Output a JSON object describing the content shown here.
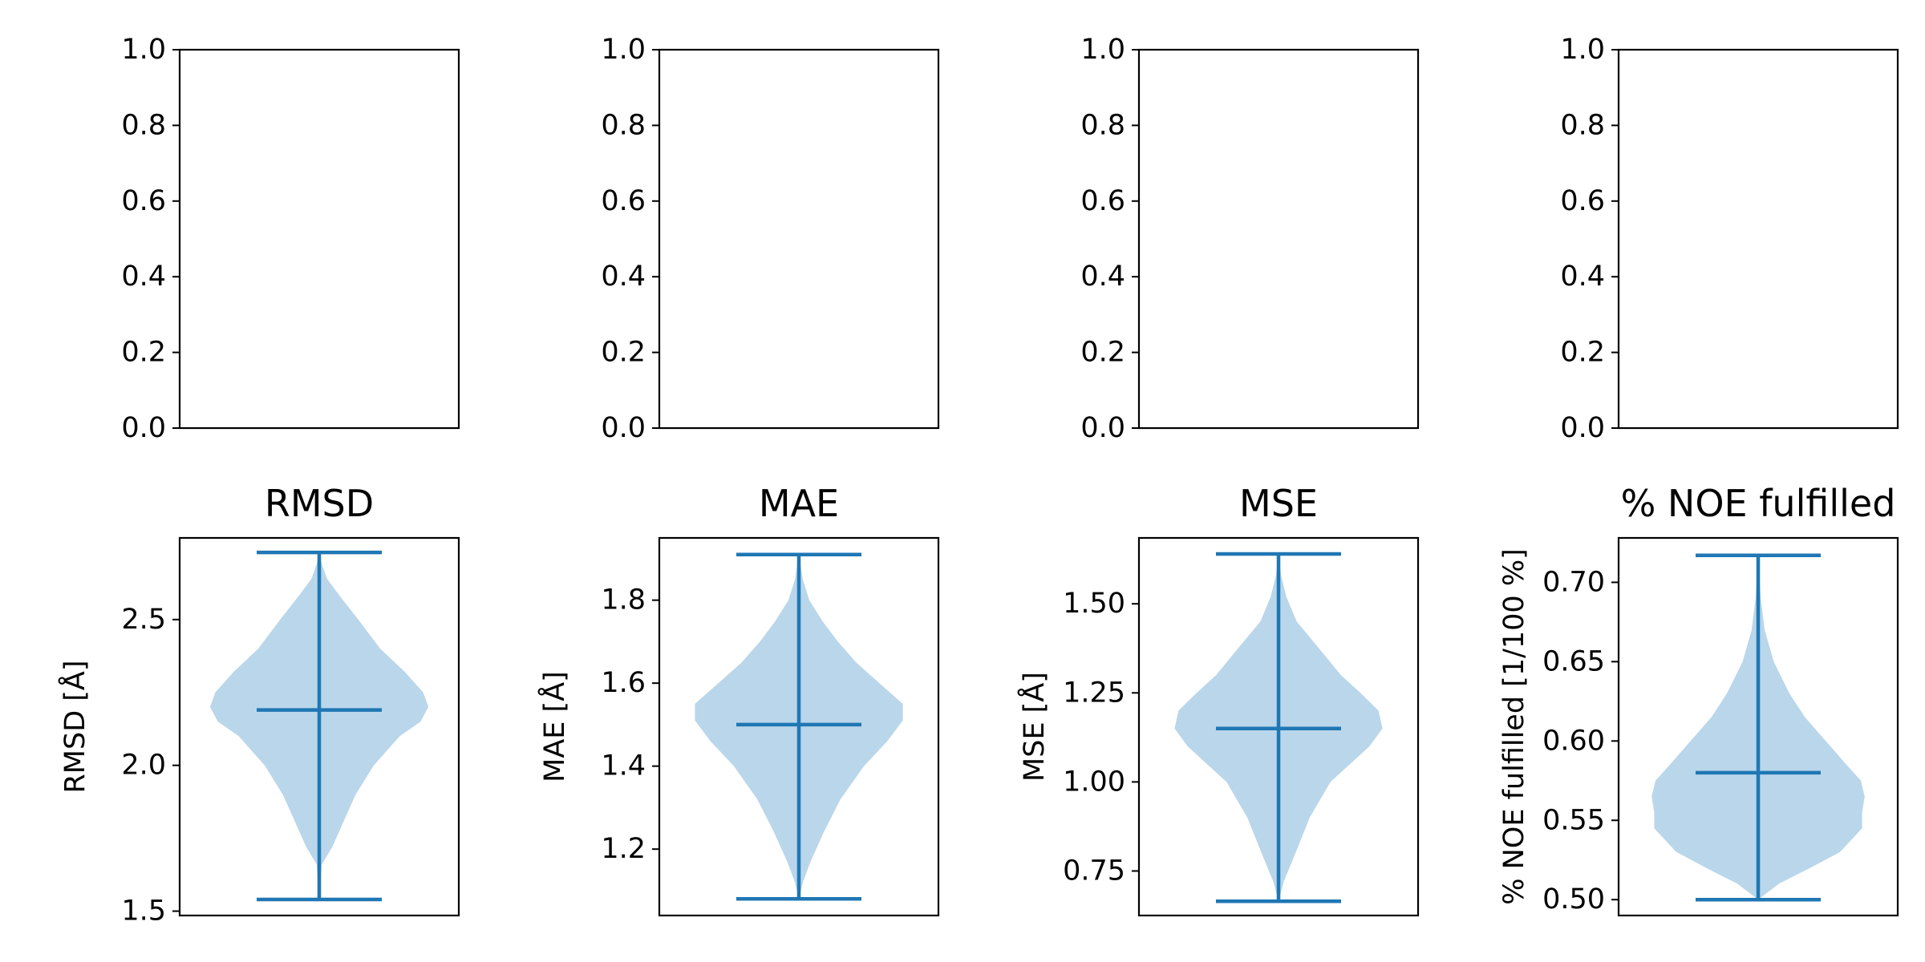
{
  "colors": {
    "violin_fill": "#bad6ea",
    "violin_line": "#1f77b4",
    "axes": "#000000",
    "background": "#ffffff"
  },
  "chart_data": [
    {
      "type": "empty",
      "ylim": [
        0.0,
        1.0
      ],
      "yticks": [
        "0.0",
        "0.2",
        "0.4",
        "0.6",
        "0.8",
        "1.0"
      ],
      "grid": false
    },
    {
      "type": "empty",
      "ylim": [
        0.0,
        1.0
      ],
      "yticks": [
        "0.0",
        "0.2",
        "0.4",
        "0.6",
        "0.8",
        "1.0"
      ],
      "grid": false
    },
    {
      "type": "empty",
      "ylim": [
        0.0,
        1.0
      ],
      "yticks": [
        "0.0",
        "0.2",
        "0.4",
        "0.6",
        "0.8",
        "1.0"
      ],
      "grid": false
    },
    {
      "type": "empty",
      "ylim": [
        0.0,
        1.0
      ],
      "yticks": [
        "0.0",
        "0.2",
        "0.4",
        "0.6",
        "0.8",
        "1.0"
      ],
      "grid": false
    },
    {
      "type": "violin",
      "title": "RMSD",
      "ylabel": "RMSD [Å]",
      "ylim": [
        1.485,
        2.78
      ],
      "yticks": [
        "1.5",
        "2.0",
        "2.5"
      ],
      "min": 1.54,
      "max": 2.73,
      "mean": 2.19,
      "profile": [
        [
          1.54,
          0.0
        ],
        [
          1.66,
          0.02
        ],
        [
          1.72,
          0.1
        ],
        [
          1.8,
          0.18
        ],
        [
          1.9,
          0.28
        ],
        [
          2.0,
          0.42
        ],
        [
          2.1,
          0.62
        ],
        [
          2.15,
          0.78
        ],
        [
          2.2,
          0.84
        ],
        [
          2.25,
          0.8
        ],
        [
          2.32,
          0.66
        ],
        [
          2.4,
          0.47
        ],
        [
          2.5,
          0.3
        ],
        [
          2.58,
          0.16
        ],
        [
          2.64,
          0.06
        ],
        [
          2.69,
          0.02
        ],
        [
          2.73,
          0.0
        ]
      ],
      "grid": false
    },
    {
      "type": "violin",
      "title": "MAE",
      "ylabel": "MAE [Å]",
      "ylim": [
        1.04,
        1.95
      ],
      "yticks": [
        "1.2",
        "1.4",
        "1.6",
        "1.8"
      ],
      "min": 1.08,
      "max": 1.91,
      "mean": 1.5,
      "profile": [
        [
          1.08,
          0.0
        ],
        [
          1.12,
          0.03
        ],
        [
          1.17,
          0.09
        ],
        [
          1.24,
          0.19
        ],
        [
          1.32,
          0.32
        ],
        [
          1.4,
          0.5
        ],
        [
          1.46,
          0.68
        ],
        [
          1.51,
          0.8
        ],
        [
          1.55,
          0.8
        ],
        [
          1.6,
          0.62
        ],
        [
          1.65,
          0.44
        ],
        [
          1.7,
          0.3
        ],
        [
          1.75,
          0.18
        ],
        [
          1.8,
          0.08
        ],
        [
          1.85,
          0.03
        ],
        [
          1.91,
          0.0
        ]
      ],
      "grid": false
    },
    {
      "type": "violin",
      "title": "MSE",
      "ylabel": "MSE [Å]",
      "ylim": [
        0.625,
        1.685
      ],
      "yticks": [
        "0.75",
        "1.00",
        "1.25",
        "1.50"
      ],
      "min": 0.665,
      "max": 1.64,
      "mean": 1.15,
      "profile": [
        [
          0.665,
          0.0
        ],
        [
          0.72,
          0.04
        ],
        [
          0.8,
          0.13
        ],
        [
          0.9,
          0.24
        ],
        [
          1.0,
          0.4
        ],
        [
          1.05,
          0.55
        ],
        [
          1.1,
          0.7
        ],
        [
          1.15,
          0.8
        ],
        [
          1.2,
          0.77
        ],
        [
          1.25,
          0.63
        ],
        [
          1.3,
          0.48
        ],
        [
          1.38,
          0.3
        ],
        [
          1.45,
          0.14
        ],
        [
          1.52,
          0.06
        ],
        [
          1.58,
          0.02
        ],
        [
          1.64,
          0.0
        ]
      ],
      "grid": false
    },
    {
      "type": "violin",
      "title": "% NOE fulfilled",
      "ylabel": "% NOE fulfilled [1/100 %]",
      "ylim": [
        0.49,
        0.728
      ],
      "yticks": [
        "0.50",
        "0.55",
        "0.60",
        "0.65",
        "0.70"
      ],
      "min": 0.5,
      "max": 0.717,
      "mean": 0.58,
      "profile": [
        [
          0.5,
          0.0
        ],
        [
          0.51,
          0.16
        ],
        [
          0.52,
          0.4
        ],
        [
          0.53,
          0.63
        ],
        [
          0.545,
          0.8
        ],
        [
          0.555,
          0.8
        ],
        [
          0.565,
          0.82
        ],
        [
          0.575,
          0.79
        ],
        [
          0.585,
          0.68
        ],
        [
          0.6,
          0.52
        ],
        [
          0.615,
          0.36
        ],
        [
          0.63,
          0.24
        ],
        [
          0.65,
          0.12
        ],
        [
          0.67,
          0.05
        ],
        [
          0.69,
          0.02
        ],
        [
          0.717,
          0.0
        ]
      ],
      "grid": false
    }
  ]
}
